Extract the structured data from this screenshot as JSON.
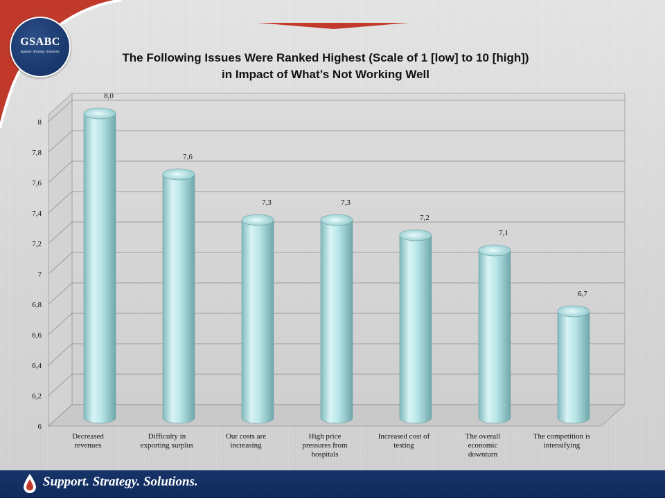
{
  "branding": {
    "logo_text": "GSABC",
    "logo_tagline": "Support. Strategy. Solutions.",
    "footer_tagline": "Support. Strategy. Solutions.",
    "colors": {
      "navy": "#17346a",
      "red": "#c0392b",
      "bar": "#a9dde0"
    }
  },
  "chart_data": {
    "type": "bar",
    "title": "The Following Issues Were Ranked Highest (Scale of 1 [low] to 10 [high]) in Impact of What’s Not Working Well",
    "title_lines": [
      "The Following Issues Were Ranked Highest (Scale of 1 [low] to 10 [high])",
      "in Impact of What’s Not Working Well"
    ],
    "categories": [
      [
        "Decreased",
        "revenues"
      ],
      [
        "Difficulty in",
        "exporting surplus"
      ],
      [
        "Our costs are",
        "increasing"
      ],
      [
        "High price",
        "pressures from",
        "hospitals"
      ],
      [
        "Increased cost of",
        "testing"
      ],
      [
        "The overall",
        "economic",
        "downturn"
      ],
      [
        "The competition is",
        "intensifying"
      ]
    ],
    "values": [
      8.0,
      7.6,
      7.3,
      7.3,
      7.2,
      7.1,
      6.7
    ],
    "value_labels": [
      "8,0",
      "7,6",
      "7,3",
      "7,3",
      "7,2",
      "7,1",
      "6,7"
    ],
    "ylim": [
      6,
      8
    ],
    "yticks": [
      6,
      6.2,
      6.4,
      6.6,
      6.8,
      7,
      7.2,
      7.4,
      7.6,
      7.8,
      8
    ],
    "ytick_labels": [
      "6",
      "6,2",
      "6,4",
      "6,6",
      "6,8",
      "7",
      "7,2",
      "7,4",
      "7,6",
      "7,8",
      "8"
    ],
    "grid": true,
    "style": "3d-cylinder"
  }
}
